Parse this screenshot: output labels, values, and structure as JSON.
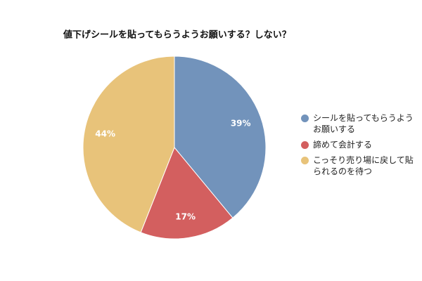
{
  "chart_data": {
    "type": "pie",
    "title": "値下げシールを貼ってもらうようお願いする？しない？",
    "categories": [
      "シールを貼ってもらうようお願いする",
      "諦めて会計する",
      "こっそり売り場に戻して貼られるのを待つ"
    ],
    "values": [
      39,
      17,
      44
    ],
    "value_labels": [
      "39%",
      "17%",
      "44%"
    ],
    "colors": [
      "#7293bb",
      "#d35f5f",
      "#e8c37a"
    ],
    "legend": "right"
  }
}
